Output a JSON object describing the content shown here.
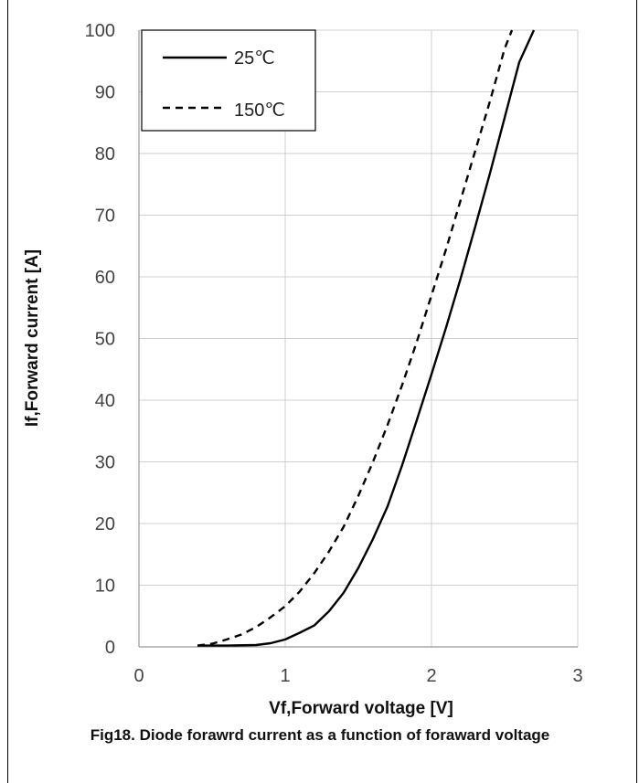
{
  "chart_data": {
    "type": "line",
    "xlabel": "Vf,Forward voltage [V]",
    "ylabel": "If,Forward current [A]",
    "xlim": [
      0,
      3
    ],
    "ylim": [
      0,
      100
    ],
    "xticks": [
      0,
      1,
      2,
      3
    ],
    "yticks": [
      0,
      10,
      20,
      30,
      40,
      50,
      60,
      70,
      80,
      90,
      100
    ],
    "grid": true,
    "legend_position": "top-left",
    "series": [
      {
        "name": "25℃",
        "style": "solid",
        "x": [
          0.4,
          0.6,
          0.8,
          0.9,
          1.0,
          1.1,
          1.2,
          1.3,
          1.4,
          1.5,
          1.6,
          1.7,
          1.8,
          1.9,
          2.0,
          2.1,
          2.2,
          2.3,
          2.4,
          2.5,
          2.6,
          2.7
        ],
        "y": [
          0.2,
          0.2,
          0.3,
          0.6,
          1.2,
          2.3,
          3.5,
          5.8,
          8.8,
          12.8,
          17.5,
          22.8,
          29.5,
          36.8,
          44.2,
          51.8,
          59.8,
          68.2,
          76.8,
          85.8,
          94.8,
          100
        ]
      },
      {
        "name": "150℃",
        "style": "dashed",
        "x": [
          0.4,
          0.5,
          0.6,
          0.7,
          0.8,
          0.9,
          1.0,
          1.1,
          1.2,
          1.3,
          1.4,
          1.5,
          1.6,
          1.7,
          1.8,
          1.9,
          2.0,
          2.1,
          2.2,
          2.3,
          2.4,
          2.5,
          2.55
        ],
        "y": [
          0.2,
          0.5,
          1.2,
          2.0,
          3.2,
          4.8,
          6.6,
          9.0,
          12.0,
          15.5,
          19.5,
          24.5,
          30.0,
          36.0,
          42.5,
          49.5,
          57.0,
          64.5,
          72.5,
          80.5,
          88.5,
          97.0,
          100
        ]
      }
    ]
  },
  "caption": "Fig18. Diode forawrd current as a function of foraward voltage"
}
